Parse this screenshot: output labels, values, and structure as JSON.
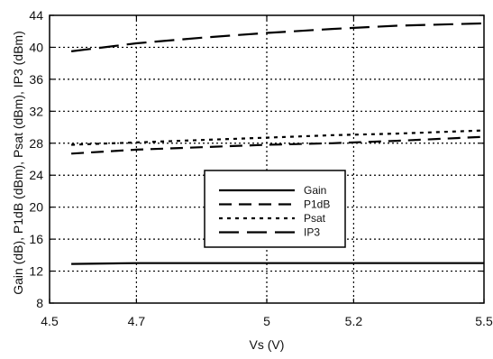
{
  "chart_data": {
    "type": "line",
    "title": "",
    "xlabel": "Vs (V)",
    "ylabel": "Gain (dB), P1dB (dBm), Psat (dBm), IP3 (dBm)",
    "xlim": [
      4.5,
      5.5
    ],
    "ylim": [
      8,
      44
    ],
    "xticks": [
      4.5,
      4.7,
      5,
      5.2,
      5.5
    ],
    "xtick_labels": [
      "4.5",
      "4.7",
      "5",
      "5.2",
      "5.5"
    ],
    "yticks": [
      8,
      12,
      16,
      20,
      24,
      28,
      32,
      36,
      40,
      44
    ],
    "ytick_labels": [
      "8",
      "12",
      "16",
      "20",
      "24",
      "28",
      "32",
      "36",
      "40",
      "44"
    ],
    "grid": true,
    "legend_position": "center",
    "x": [
      4.55,
      4.7,
      4.85,
      5.0,
      5.15,
      5.3,
      5.5
    ],
    "series": [
      {
        "name": "Gain",
        "style": "solid",
        "values": [
          12.9,
          13.0,
          13.0,
          13.0,
          13.0,
          13.0,
          13.0
        ]
      },
      {
        "name": "P1dB",
        "style": "dash",
        "values": [
          26.7,
          27.2,
          27.5,
          27.8,
          28.0,
          28.3,
          28.8
        ]
      },
      {
        "name": "Psat",
        "style": "dot",
        "values": [
          27.8,
          28.1,
          28.4,
          28.7,
          29.0,
          29.2,
          29.6
        ]
      },
      {
        "name": "IP3",
        "style": "longdash",
        "values": [
          39.5,
          40.5,
          41.2,
          41.8,
          42.3,
          42.7,
          43.0
        ]
      }
    ]
  }
}
